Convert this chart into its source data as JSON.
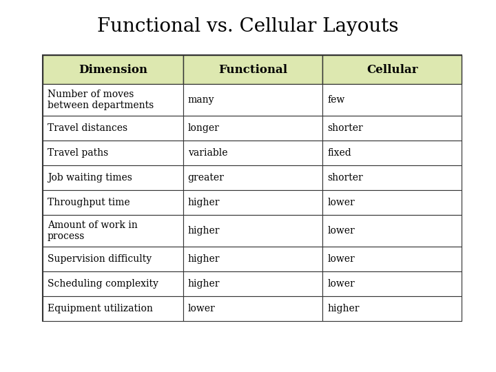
{
  "title": "Functional vs. Cellular Layouts",
  "title_fontsize": 20,
  "header": [
    "Dimension",
    "Functional",
    "Cellular"
  ],
  "rows": [
    [
      "Number of moves\nbetween departments",
      "many",
      "few"
    ],
    [
      "Travel distances",
      "longer",
      "shorter"
    ],
    [
      "Travel paths",
      "variable",
      "fixed"
    ],
    [
      "Job waiting times",
      "greater",
      "shorter"
    ],
    [
      "Throughput time",
      "higher",
      "lower"
    ],
    [
      "Amount of work in\nprocess",
      "higher",
      "lower"
    ],
    [
      "Supervision difficulty",
      "higher",
      "lower"
    ],
    [
      "Scheduling complexity",
      "higher",
      "lower"
    ],
    [
      "Equipment utilization",
      "lower",
      "higher"
    ]
  ],
  "header_bg": "#dde8b0",
  "row_bg": "#ffffff",
  "border_color": "#333333",
  "text_color": "#000000",
  "header_fontsize": 12,
  "cell_fontsize": 10,
  "fig_bg": "#ffffff"
}
